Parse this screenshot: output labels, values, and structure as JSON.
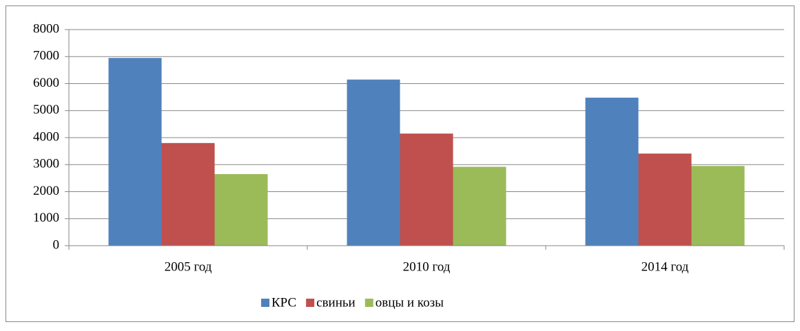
{
  "chart_data": {
    "type": "bar",
    "categories": [
      "2005 год",
      "2010 год",
      "2014 год"
    ],
    "series": [
      {
        "name": "КРС",
        "color": "#4f81bd",
        "values": [
          6950,
          6150,
          5480
        ]
      },
      {
        "name": "свиньи",
        "color": "#c0504d",
        "values": [
          3800,
          4150,
          3410
        ]
      },
      {
        "name": "овцы и козы",
        "color": "#9bbb59",
        "values": [
          2650,
          2920,
          2950
        ]
      }
    ],
    "ylim": [
      0,
      8000
    ],
    "yticks": [
      0,
      1000,
      2000,
      3000,
      4000,
      5000,
      6000,
      7000,
      8000
    ],
    "grid": true,
    "legend": "bottom"
  }
}
